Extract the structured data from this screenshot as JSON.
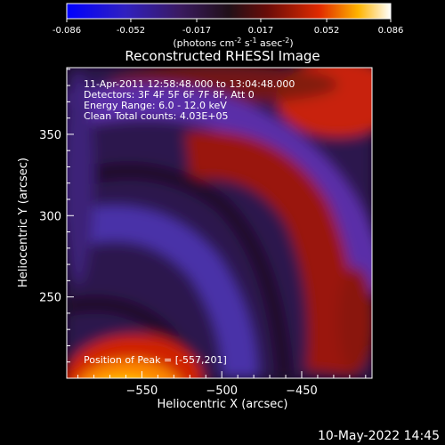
{
  "chart_data": {
    "type": "heatmap",
    "title": "Reconstructed RHESSI Image",
    "xlabel": "Heliocentric X (arcsec)",
    "ylabel": "Heliocentric Y (arcsec)",
    "xlim": [
      -597,
      -406
    ],
    "ylim": [
      200,
      391
    ],
    "xticks": [
      -550,
      -500,
      -450
    ],
    "yticks": [
      250,
      300,
      350
    ],
    "colorbar": {
      "min": -0.086,
      "max": 0.086,
      "ticks": [
        "-0.086",
        "-0.052",
        "-0.017",
        "0.017",
        "0.052",
        "0.086"
      ],
      "units_label": "(photons cm",
      "units_exp1": "-2",
      "units_mid": " s",
      "units_exp2": "-1",
      "units_end": " asec",
      "units_exp3": "-2",
      "units_close": ")"
    },
    "annotations": [
      "11-Apr-2011 12:58:48.000 to 13:04:48.000",
      "Detectors: 3F 4F 5F 6F 7F 8F, Att 0",
      "Energy Range: 6.0 - 12.0 keV",
      "Clean    Total counts: 4.03E+05"
    ],
    "peak_label": "Position of Peak = [-557,201]",
    "peak": {
      "x": -557,
      "y": 201
    },
    "grid": false,
    "colormap": [
      "#0000ff",
      "#5a2ca0",
      "#2a1040",
      "#4a0a0a",
      "#d81e00",
      "#ffd000",
      "#ffffff"
    ]
  },
  "footer": {
    "date": "10-May-2022 14:45"
  }
}
